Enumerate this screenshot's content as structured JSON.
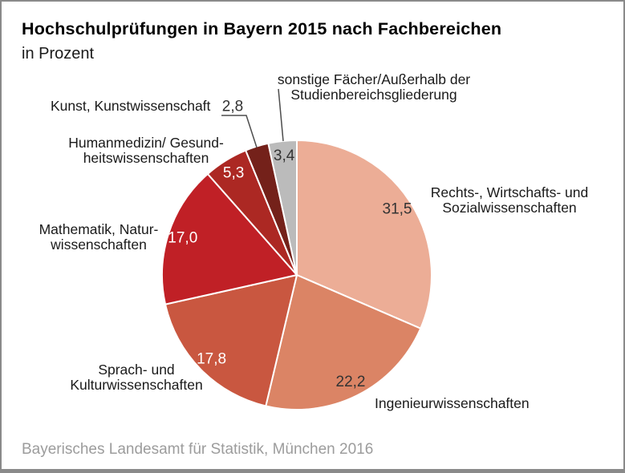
{
  "header": {
    "title": "Hochschulprüfungen in Bayern 2015 nach Fachbereichen",
    "subtitle": "in Prozent"
  },
  "footer": {
    "source": "Bayerisches Landesamt für Statistik, München 2016"
  },
  "chart_data": {
    "type": "pie",
    "title": "Hochschulprüfungen in Bayern 2015 nach Fachbereichen",
    "unit": "in Prozent",
    "start_angle_deg": 0,
    "direction": "clockwise",
    "separator_color": "#ffffff",
    "leader_line_color": "#4d4d4d",
    "segments": [
      {
        "label": "Rechts-, Wirtschafts- und\nSozialwissenschaften",
        "value": 31.5,
        "value_text": "31,5",
        "color": "#ecad96",
        "value_label_color": "#333333",
        "value_label_placement": "inside"
      },
      {
        "label": "Ingenieurwissenschaften",
        "value": 22.2,
        "value_text": "22,2",
        "color": "#db8465",
        "value_label_color": "#333333",
        "value_label_placement": "inside"
      },
      {
        "label": "Sprach- und\nKulturwissenschaften",
        "value": 17.8,
        "value_text": "17,8",
        "color": "#c95740",
        "value_label_color": "#ffffff",
        "value_label_placement": "inside"
      },
      {
        "label": "Mathematik, Natur-\nwissenschaften",
        "value": 17.0,
        "value_text": "17,0",
        "color": "#c02026",
        "value_label_color": "#ffffff",
        "value_label_placement": "inside"
      },
      {
        "label": "Humanmedizin/ Gesund-\nheitswissenschaften",
        "value": 5.3,
        "value_text": "5,3",
        "color": "#ac2823",
        "value_label_color": "#ffffff",
        "value_label_placement": "inside"
      },
      {
        "label": "Kunst, Kunstwissenschaft",
        "value": 2.8,
        "value_text": "2,8",
        "color": "#74211a",
        "value_label_color": "#333333",
        "value_label_placement": "outside"
      },
      {
        "label": "sonstige Fächer/Außerhalb der\nStudienbereichsgliederung",
        "value": 3.4,
        "value_text": "3,4",
        "color": "#bbbbbb",
        "value_label_color": "#333333",
        "value_label_placement": "inside"
      }
    ]
  }
}
